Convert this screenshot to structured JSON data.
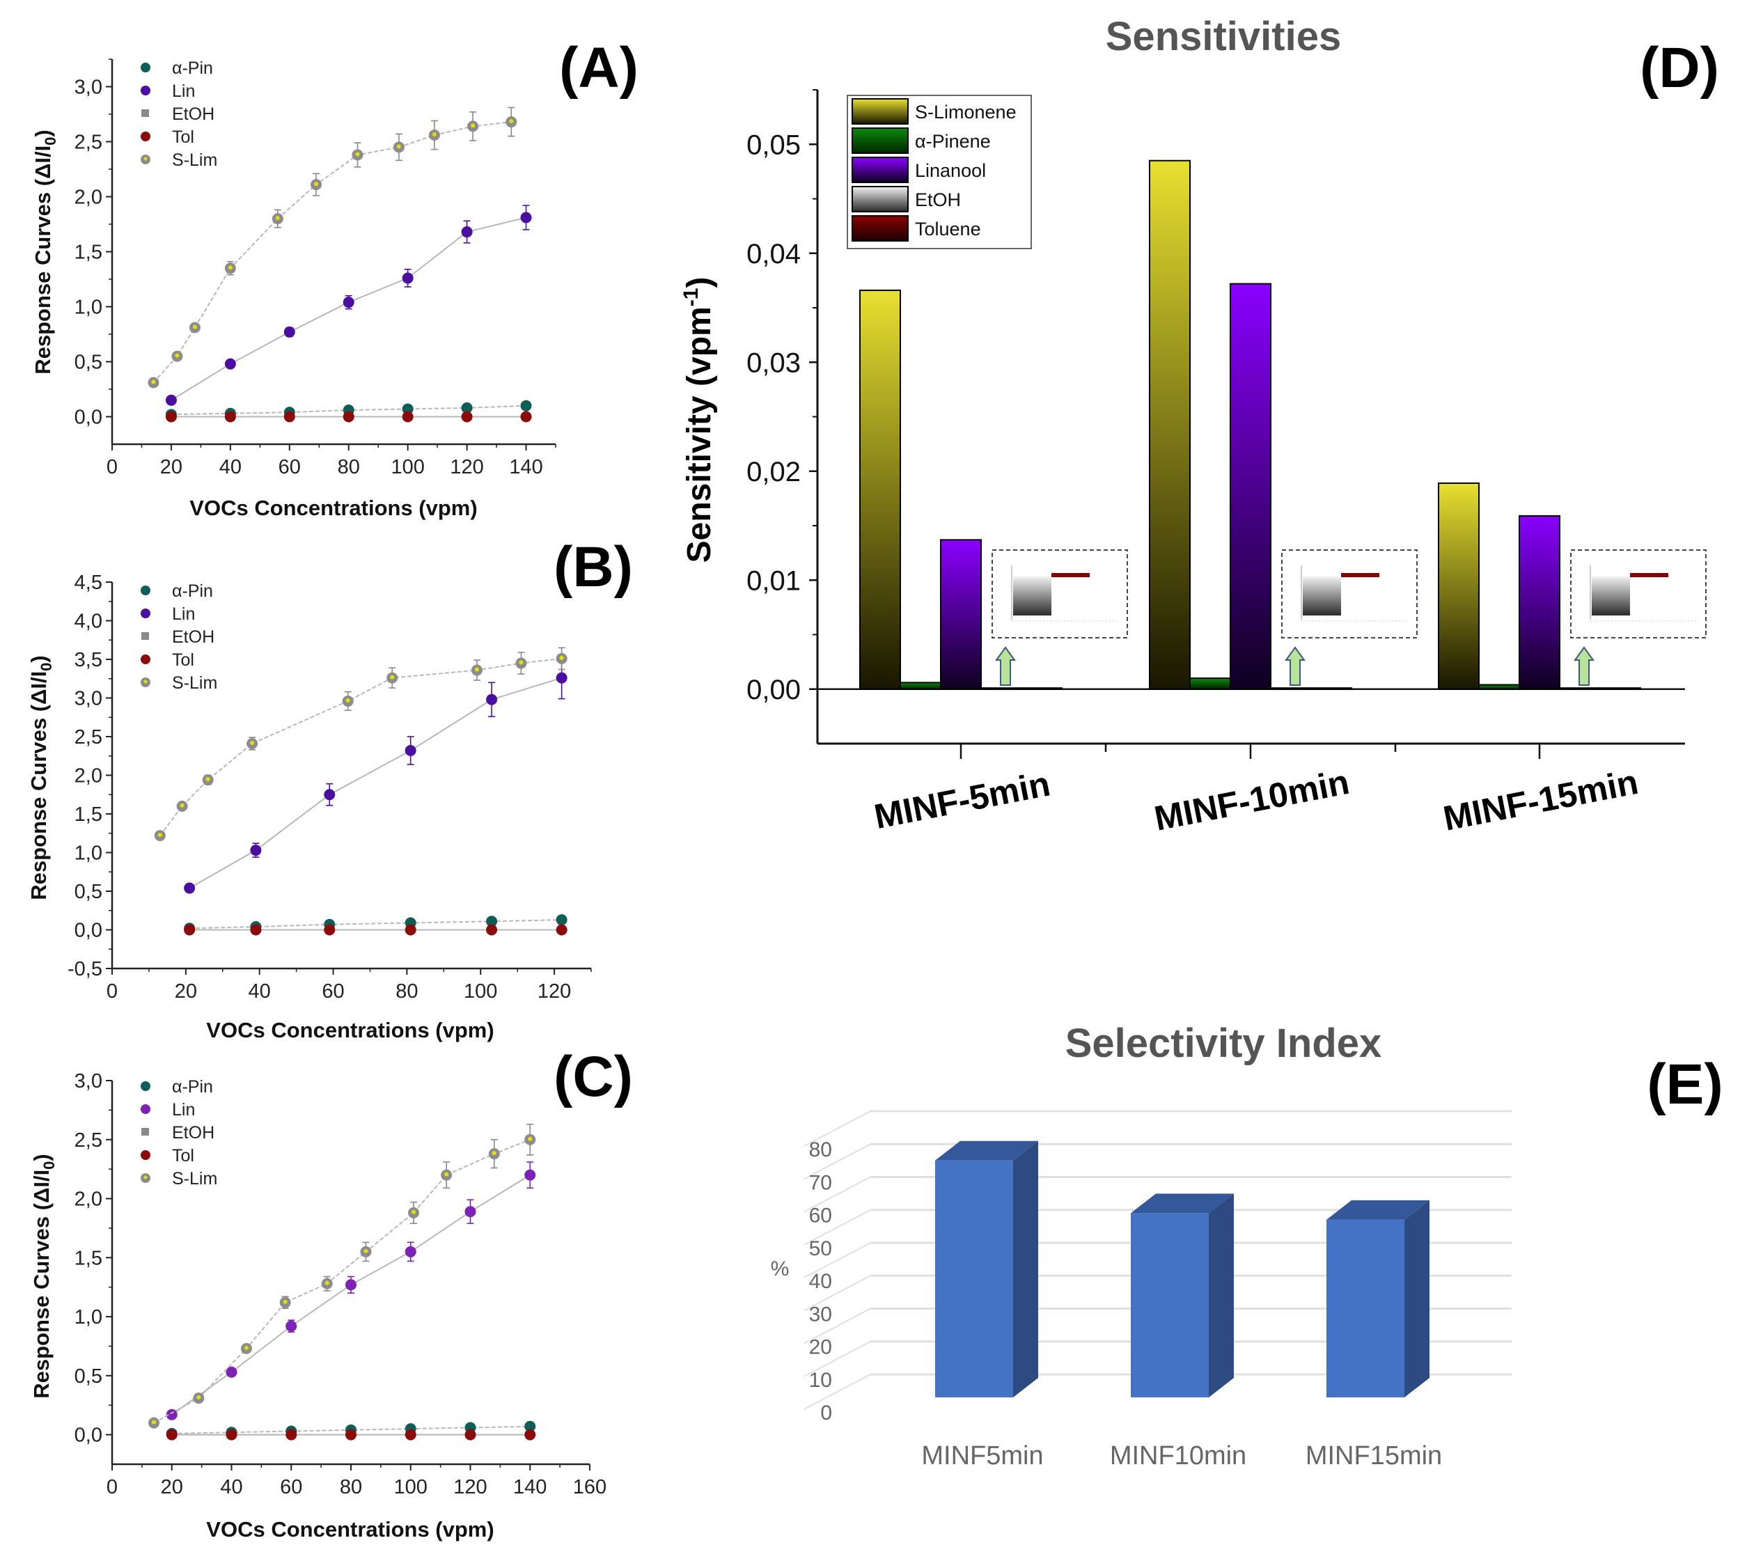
{
  "colors": {
    "alpha_pin": "#0e5e58",
    "lin": "#4a0fa0",
    "lin_c": "#7d22b5",
    "etoh": "#8a8a8a",
    "tol": "#8b0a0a",
    "slim_edge": "#8c8c8c",
    "slim_core": "#e6e000",
    "fit": "#b8b8b8",
    "e_bar_front": "#4472c4",
    "e_bar_side": "#2d4a82",
    "e_bar_top": "#34589a",
    "title_gray": "#595959"
  },
  "chart_data": [
    {
      "panel_label": "(A)",
      "type": "scatter",
      "xlabel": "VOCs Concentrations (vpm)",
      "ylabel": {
        "main": "Response Curves (ΔI/I",
        "sub": "0",
        "end": ")"
      },
      "xlim": [
        0,
        150
      ],
      "ylim": [
        -0.25,
        3.25
      ],
      "xticks": [
        0,
        20,
        40,
        60,
        80,
        100,
        120,
        140
      ],
      "xtick_labels": [
        "0",
        "20",
        "40",
        "60",
        "80",
        "100",
        "120",
        "140"
      ],
      "yticks": [
        0,
        0.5,
        1,
        1.5,
        2,
        2.5,
        3
      ],
      "ytick_labels": [
        "0,0",
        "0,5",
        "1,0",
        "1,5",
        "2,0",
        "2,5",
        "3,0"
      ],
      "legend": [
        "α-Pin",
        "Lin",
        "EtOH",
        "Tol",
        "S-Lim"
      ],
      "legend_position": "top-left",
      "series": [
        {
          "name": "α-Pin",
          "x": [
            20,
            40,
            60,
            80,
            100,
            120,
            140
          ],
          "y": [
            0.02,
            0.03,
            0.04,
            0.06,
            0.07,
            0.08,
            0.1
          ]
        },
        {
          "name": "Lin",
          "x": [
            20,
            40,
            60,
            80,
            100,
            120,
            140
          ],
          "y": [
            0.15,
            0.48,
            0.77,
            1.04,
            1.26,
            1.68,
            1.81
          ],
          "yerr": [
            0.02,
            0.02,
            0.04,
            0.06,
            0.08,
            0.1,
            0.11
          ]
        },
        {
          "name": "EtOH",
          "x": [
            20,
            40,
            60,
            80,
            100,
            120,
            140
          ],
          "y": [
            0,
            0,
            0,
            0,
            0,
            0,
            0
          ]
        },
        {
          "name": "Tol",
          "x": [
            20,
            40,
            60,
            80,
            100,
            120,
            140
          ],
          "y": [
            0,
            0,
            0,
            0,
            0,
            0,
            0
          ]
        },
        {
          "name": "S-Lim",
          "x": [
            14,
            22,
            28,
            40,
            56,
            69,
            83,
            97,
            109,
            122,
            135
          ],
          "y": [
            0.31,
            0.55,
            0.81,
            1.35,
            1.8,
            2.11,
            2.38,
            2.45,
            2.56,
            2.64,
            2.68
          ],
          "yerr": [
            0.02,
            0.03,
            0.03,
            0.06,
            0.08,
            0.1,
            0.11,
            0.12,
            0.13,
            0.13,
            0.13
          ]
        }
      ]
    },
    {
      "panel_label": "(B)",
      "type": "scatter",
      "xlabel": "VOCs Concentrations (vpm)",
      "ylabel": {
        "main": "Response Curves (ΔI/I",
        "sub": "0",
        "end": ")"
      },
      "xlim": [
        0,
        130
      ],
      "ylim": [
        -0.5,
        4.5
      ],
      "xticks": [
        0,
        20,
        40,
        60,
        80,
        100,
        120
      ],
      "xtick_labels": [
        "0",
        "20",
        "40",
        "60",
        "80",
        "100",
        "120"
      ],
      "yticks": [
        -0.5,
        0,
        0.5,
        1,
        1.5,
        2,
        2.5,
        3,
        3.5,
        4,
        4.5
      ],
      "ytick_labels": [
        "-0,5",
        "0,0",
        "0,5",
        "1,0",
        "1,5",
        "2,0",
        "2,5",
        "3,0",
        "3,5",
        "4,0",
        "4,5"
      ],
      "legend": [
        "α-Pin",
        "Lin",
        "EtOH",
        "Tol",
        "S-Lim"
      ],
      "legend_position": "top-left",
      "series": [
        {
          "name": "α-Pin",
          "x": [
            21,
            39,
            59,
            81,
            103,
            122
          ],
          "y": [
            0.02,
            0.04,
            0.07,
            0.09,
            0.11,
            0.13
          ]
        },
        {
          "name": "Lin",
          "x": [
            21,
            39,
            59,
            81,
            103,
            122
          ],
          "y": [
            0.54,
            1.03,
            1.75,
            2.32,
            2.98,
            3.26
          ],
          "yerr": [
            0.03,
            0.09,
            0.14,
            0.18,
            0.22,
            0.27
          ]
        },
        {
          "name": "EtOH",
          "x": [
            21,
            39,
            59,
            81,
            103,
            122
          ],
          "y": [
            0,
            0,
            0,
            0,
            0,
            0
          ]
        },
        {
          "name": "Tol",
          "x": [
            21,
            39,
            59,
            81,
            103,
            122
          ],
          "y": [
            0,
            0,
            0,
            0,
            0,
            0
          ]
        },
        {
          "name": "S-Lim",
          "x": [
            13,
            19,
            26,
            38,
            64,
            76,
            99,
            111,
            122
          ],
          "y": [
            1.22,
            1.6,
            1.94,
            2.41,
            2.96,
            3.26,
            3.36,
            3.45,
            3.51
          ],
          "yerr": [
            0.03,
            0.04,
            0.06,
            0.08,
            0.12,
            0.13,
            0.13,
            0.14,
            0.14
          ]
        }
      ]
    },
    {
      "panel_label": "(C)",
      "type": "scatter",
      "xlabel": "VOCs Concentrations (vpm)",
      "ylabel": {
        "main": "Response Curves (ΔI/I",
        "sub": "0",
        "end": ")"
      },
      "xlim": [
        0,
        160
      ],
      "ylim": [
        -0.25,
        3.0
      ],
      "xticks": [
        0,
        20,
        40,
        60,
        80,
        100,
        120,
        140,
        160
      ],
      "xtick_labels": [
        "0",
        "20",
        "40",
        "60",
        "80",
        "100",
        "120",
        "140",
        "160"
      ],
      "yticks": [
        0,
        0.5,
        1,
        1.5,
        2,
        2.5,
        3
      ],
      "ytick_labels": [
        "0,0",
        "0,5",
        "1,0",
        "1,5",
        "2,0",
        "2,5",
        "3,0"
      ],
      "legend": [
        "α-Pin",
        "Lin",
        "EtOH",
        "Tol",
        "S-Lim"
      ],
      "legend_position": "top-left",
      "series": [
        {
          "name": "α-Pin",
          "x": [
            20,
            40,
            60,
            80,
            100,
            120,
            140
          ],
          "y": [
            0.01,
            0.02,
            0.03,
            0.04,
            0.05,
            0.06,
            0.07
          ]
        },
        {
          "name": "Lin",
          "x": [
            20,
            40,
            60,
            80,
            100,
            120,
            140
          ],
          "y": [
            0.17,
            0.53,
            0.92,
            1.27,
            1.55,
            1.89,
            2.2
          ],
          "yerr": [
            0.02,
            0.03,
            0.05,
            0.07,
            0.08,
            0.1,
            0.11
          ]
        },
        {
          "name": "EtOH",
          "x": [
            20,
            40,
            60,
            80,
            100,
            120,
            140
          ],
          "y": [
            0,
            0,
            0,
            0,
            0,
            0,
            0
          ]
        },
        {
          "name": "Tol",
          "x": [
            20,
            40,
            60,
            80,
            100,
            120,
            140
          ],
          "y": [
            0,
            0,
            0,
            0,
            0,
            0,
            0
          ]
        },
        {
          "name": "S-Lim",
          "x": [
            14,
            29,
            45,
            58,
            72,
            85,
            101,
            112,
            128,
            140
          ],
          "y": [
            0.1,
            0.31,
            0.73,
            1.12,
            1.28,
            1.55,
            1.88,
            2.2,
            2.38,
            2.5
          ],
          "yerr": [
            0.02,
            0.02,
            0.03,
            0.05,
            0.06,
            0.08,
            0.09,
            0.11,
            0.12,
            0.13
          ]
        }
      ]
    },
    {
      "panel_label": "(D)",
      "type": "bar",
      "title": "Sensitivities",
      "ylabel": {
        "main": "Sensitivity (vpm",
        "sup": "-1",
        "end": ")"
      },
      "categories": [
        "MINF-5min",
        "MINF-10min",
        "MINF-15min"
      ],
      "ylim": [
        -0.005,
        0.055
      ],
      "yticks": [
        0,
        0.01,
        0.02,
        0.03,
        0.04,
        0.05
      ],
      "ytick_labels": [
        "0,00",
        "0,01",
        "0,02",
        "0,03",
        "0,04",
        "0,05"
      ],
      "legend_position": "top-left",
      "series": [
        {
          "name": "S-Limonene",
          "values": [
            0.0366,
            0.0485,
            0.0189
          ],
          "color_top": "#e8e030",
          "color_bottom": "#181600"
        },
        {
          "name": "α-Pinene",
          "values": [
            0.0006,
            0.001,
            0.0004
          ],
          "color_top": "#0c8a0c",
          "color_bottom": "#002400"
        },
        {
          "name": "Linanool",
          "values": [
            0.0137,
            0.0372,
            0.0159
          ],
          "color_top": "#8a00ff",
          "color_bottom": "#0e0020"
        },
        {
          "name": "EtOH",
          "values": [
            0.0001,
            0.0001,
            0.0001
          ],
          "color_top": "#f2f2f2",
          "color_bottom": "#2a2a2a"
        },
        {
          "name": "Toluene",
          "values": [
            0.0001,
            0.0001,
            0.0001
          ],
          "color_top": "#8b0000",
          "color_bottom": "#1e0000"
        }
      ]
    },
    {
      "panel_label": "(E)",
      "type": "bar",
      "title": "Selectivity Index",
      "ylabel": "%",
      "categories": [
        "MINF5min",
        "MINF10min",
        "MINF15min"
      ],
      "values": [
        72,
        56,
        54
      ],
      "ylim": [
        0,
        80
      ],
      "yticks": [
        0,
        10,
        20,
        30,
        40,
        50,
        60,
        70,
        80
      ],
      "ytick_labels": [
        "0",
        "10",
        "20",
        "30",
        "40",
        "50",
        "60",
        "70",
        "80"
      ],
      "grid": true,
      "style": "3d-column"
    }
  ]
}
